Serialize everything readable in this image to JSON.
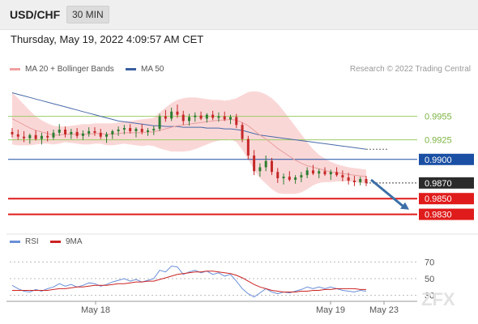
{
  "header": {
    "symbol": "USD/CHF",
    "timeframe": "30 MIN"
  },
  "datetime": "Thursday, May 19, 2022 4:09:57 AM CET",
  "legend": [
    {
      "label": "MA 20 + Bollinger Bands",
      "color": "#f0a0a0"
    },
    {
      "label": "MA 50",
      "color": "#3b5fa0"
    }
  ],
  "credit": "Research © 2022 Trading Central",
  "rsi_legend": [
    {
      "label": "RSI",
      "color": "#6a8fd6"
    },
    {
      "label": "9MA",
      "color": "#cc2222"
    }
  ],
  "watermark": "ZFX",
  "colors": {
    "up": "#2e7d32",
    "down": "#c62828",
    "band": "#f9d0d0",
    "ma20": "#e8a0a0",
    "ma50": "#4a6aa8",
    "resistance": "#9ccc65",
    "pivot": "#1a4fa3",
    "support": "#e01b1b",
    "price_tag": "#2b2b2b",
    "arrow": "#3b6fa6"
  },
  "chart_data": [
    {
      "type": "candlestick",
      "title": "USD/CHF",
      "y_range": [
        0.9812,
        1.0
      ],
      "x_labels": [
        "May 18",
        "May 19",
        "May 23"
      ],
      "ohlc": [
        [
          0.9935,
          0.994,
          0.9928,
          0.9932
        ],
        [
          0.9932,
          0.9938,
          0.9925,
          0.9929
        ],
        [
          0.9929,
          0.9936,
          0.9922,
          0.9927
        ],
        [
          0.9927,
          0.9933,
          0.992,
          0.9931
        ],
        [
          0.9931,
          0.9937,
          0.9924,
          0.9926
        ],
        [
          0.9926,
          0.9934,
          0.9919,
          0.993
        ],
        [
          0.993,
          0.9936,
          0.9923,
          0.9928
        ],
        [
          0.9928,
          0.9938,
          0.9925,
          0.9934
        ],
        [
          0.9934,
          0.9945,
          0.993,
          0.9938
        ],
        [
          0.9938,
          0.9942,
          0.9928,
          0.9932
        ],
        [
          0.9932,
          0.9939,
          0.9926,
          0.9935
        ],
        [
          0.9935,
          0.994,
          0.9927,
          0.993
        ],
        [
          0.993,
          0.9937,
          0.9925,
          0.9933
        ],
        [
          0.9933,
          0.9941,
          0.9929,
          0.9936
        ],
        [
          0.9936,
          0.9941,
          0.993,
          0.9934
        ],
        [
          0.9934,
          0.9939,
          0.9926,
          0.9929
        ],
        [
          0.9929,
          0.9935,
          0.9921,
          0.9932
        ],
        [
          0.9932,
          0.9938,
          0.9926,
          0.9936
        ],
        [
          0.9936,
          0.9942,
          0.993,
          0.9938
        ],
        [
          0.9938,
          0.9944,
          0.9932,
          0.994
        ],
        [
          0.994,
          0.9945,
          0.9933,
          0.9936
        ],
        [
          0.9936,
          0.9941,
          0.9928,
          0.9939
        ],
        [
          0.9939,
          0.9945,
          0.9932,
          0.9935
        ],
        [
          0.9935,
          0.994,
          0.993,
          0.9937
        ],
        [
          0.9937,
          0.9943,
          0.9931,
          0.9939
        ],
        [
          0.9939,
          0.9958,
          0.9936,
          0.9955
        ],
        [
          0.9955,
          0.9963,
          0.9948,
          0.9952
        ],
        [
          0.9952,
          0.9966,
          0.9949,
          0.9961
        ],
        [
          0.9961,
          0.997,
          0.9953,
          0.9957
        ],
        [
          0.9957,
          0.9962,
          0.9944,
          0.9949
        ],
        [
          0.9949,
          0.9958,
          0.9943,
          0.9954
        ],
        [
          0.9954,
          0.996,
          0.9948,
          0.9956
        ],
        [
          0.9956,
          0.9961,
          0.995,
          0.9952
        ],
        [
          0.9952,
          0.9959,
          0.9947,
          0.9957
        ],
        [
          0.9957,
          0.9962,
          0.995,
          0.9953
        ],
        [
          0.9953,
          0.996,
          0.9948,
          0.9955
        ],
        [
          0.9955,
          0.9961,
          0.9949,
          0.9951
        ],
        [
          0.9951,
          0.9957,
          0.9945,
          0.9954
        ],
        [
          0.9954,
          0.9958,
          0.994,
          0.9944
        ],
        [
          0.9944,
          0.9947,
          0.9922,
          0.9926
        ],
        [
          0.9926,
          0.993,
          0.99,
          0.9905
        ],
        [
          0.9905,
          0.9912,
          0.988,
          0.9885
        ],
        [
          0.9885,
          0.9895,
          0.9878,
          0.989
        ],
        [
          0.989,
          0.9905,
          0.9885,
          0.9898
        ],
        [
          0.9898,
          0.9902,
          0.988,
          0.9884
        ],
        [
          0.9884,
          0.9889,
          0.987,
          0.9876
        ],
        [
          0.9876,
          0.9882,
          0.9868,
          0.9878
        ],
        [
          0.9878,
          0.9885,
          0.9872,
          0.9874
        ],
        [
          0.9874,
          0.988,
          0.9869,
          0.9877
        ],
        [
          0.9877,
          0.9884,
          0.9871,
          0.988
        ],
        [
          0.988,
          0.989,
          0.9876,
          0.9886
        ],
        [
          0.9886,
          0.9893,
          0.988,
          0.9882
        ],
        [
          0.9882,
          0.9888,
          0.9876,
          0.9885
        ],
        [
          0.9885,
          0.989,
          0.9879,
          0.9881
        ],
        [
          0.9881,
          0.9887,
          0.9874,
          0.9884
        ],
        [
          0.9884,
          0.989,
          0.9878,
          0.988
        ],
        [
          0.988,
          0.9886,
          0.9872,
          0.9877
        ],
        [
          0.9877,
          0.9883,
          0.9868,
          0.9873
        ],
        [
          0.9873,
          0.9879,
          0.9866,
          0.9871
        ],
        [
          0.9871,
          0.9878,
          0.9867,
          0.9875
        ],
        [
          0.9875,
          0.9879,
          0.9866,
          0.987
        ]
      ],
      "overlays": [
        {
          "name": "MA 20",
          "values": [
            0.9952,
            0.9948,
            0.9944,
            0.994,
            0.9937,
            0.9935,
            0.9933,
            0.9931,
            0.9931,
            0.9932,
            0.9932,
            0.9932,
            0.9932,
            0.9932,
            0.9933,
            0.9933,
            0.9932,
            0.9932,
            0.9933,
            0.9934,
            0.9934,
            0.9934,
            0.9934,
            0.9935,
            0.9935,
            0.9937,
            0.9939,
            0.9941,
            0.9943,
            0.9944,
            0.9945,
            0.9946,
            0.9947,
            0.9948,
            0.9949,
            0.995,
            0.995,
            0.9951,
            0.995,
            0.9947,
            0.9943,
            0.9937,
            0.9931,
            0.9926,
            0.992,
            0.9914,
            0.9909,
            0.9904,
            0.9899,
            0.9895,
            0.9892,
            0.989,
            0.9888,
            0.9886,
            0.9884,
            0.9883,
            0.9882,
            0.9881,
            0.988,
            0.9879,
            0.9878
          ]
        },
        {
          "name": "MA 50",
          "values": [
            0.9985,
            0.9983,
            0.9981,
            0.9979,
            0.9977,
            0.9975,
            0.9973,
            0.9971,
            0.9969,
            0.9967,
            0.9965,
            0.9963,
            0.9961,
            0.9959,
            0.9957,
            0.9955,
            0.9953,
            0.9951,
            0.9949,
            0.9948,
            0.9947,
            0.9946,
            0.9945,
            0.9944,
            0.9943,
            0.9943,
            0.9942,
            0.9942,
            0.9942,
            0.9941,
            0.9941,
            0.9941,
            0.9941,
            0.994,
            0.994,
            0.994,
            0.9939,
            0.9939,
            0.9938,
            0.9937,
            0.9935,
            0.9933,
            0.9931,
            0.993,
            0.9929,
            0.9928,
            0.9927,
            0.9926,
            0.9925,
            0.9924,
            0.9923,
            0.9922,
            0.9921,
            0.992,
            0.9919,
            0.9918,
            0.9917,
            0.9916,
            0.9915,
            0.9914,
            0.9913
          ]
        },
        {
          "name": "Bollinger upper",
          "values": [
            0.9985,
            0.9978,
            0.997,
            0.9962,
            0.9955,
            0.995,
            0.9946,
            0.9943,
            0.9942,
            0.9942,
            0.9943,
            0.9944,
            0.9945,
            0.9945,
            0.9946,
            0.9946,
            0.9946,
            0.9946,
            0.9947,
            0.9948,
            0.9949,
            0.995,
            0.9951,
            0.9952,
            0.9953,
            0.996,
            0.9966,
            0.9972,
            0.9976,
            0.9978,
            0.9979,
            0.9979,
            0.9978,
            0.9977,
            0.9976,
            0.9976,
            0.9975,
            0.9976,
            0.9978,
            0.9982,
            0.9986,
            0.9987,
            0.9986,
            0.9983,
            0.9978,
            0.9971,
            0.9962,
            0.9952,
            0.9942,
            0.9932,
            0.9922,
            0.9913,
            0.9906,
            0.9901,
            0.9897,
            0.9894,
            0.9892,
            0.989,
            0.9889,
            0.9888,
            0.9887
          ]
        },
        {
          "name": "Bollinger lower",
          "values": [
            0.9919,
            0.9918,
            0.9918,
            0.9918,
            0.9919,
            0.992,
            0.992,
            0.9919,
            0.992,
            0.9922,
            0.9921,
            0.992,
            0.9919,
            0.9919,
            0.992,
            0.992,
            0.9918,
            0.9918,
            0.9919,
            0.992,
            0.9919,
            0.9918,
            0.9917,
            0.9918,
            0.9917,
            0.9914,
            0.9912,
            0.991,
            0.991,
            0.991,
            0.9911,
            0.9913,
            0.9916,
            0.9919,
            0.9922,
            0.9924,
            0.9925,
            0.9926,
            0.9922,
            0.9912,
            0.99,
            0.9887,
            0.9876,
            0.9869,
            0.9862,
            0.9857,
            0.9856,
            0.9856,
            0.9856,
            0.9858,
            0.9862,
            0.9867,
            0.987,
            0.9871,
            0.9871,
            0.9872,
            0.9872,
            0.9872,
            0.9871,
            0.987,
            0.9869
          ]
        }
      ],
      "levels": [
        {
          "label": "0.9955",
          "value": 0.9955,
          "type": "resistance"
        },
        {
          "label": "0.9925",
          "value": 0.9925,
          "type": "resistance"
        },
        {
          "label": "0.9900",
          "value": 0.99,
          "type": "pivot"
        },
        {
          "label": "0.9870",
          "value": 0.987,
          "type": "last"
        },
        {
          "label": "0.9850",
          "value": 0.985,
          "type": "support"
        },
        {
          "label": "0.9830",
          "value": 0.983,
          "type": "support"
        }
      ],
      "projection": {
        "from": 0.9874,
        "to": 0.9836
      }
    },
    {
      "type": "line",
      "title": "RSI",
      "y_range": [
        20,
        80
      ],
      "y_ticks": [
        "70",
        "50",
        "30"
      ],
      "x_labels": [
        "May 18",
        "May 19",
        "May 23"
      ],
      "series": [
        {
          "name": "RSI",
          "values": [
            42,
            38,
            35,
            34,
            37,
            35,
            38,
            40,
            44,
            41,
            43,
            40,
            42,
            45,
            44,
            41,
            43,
            46,
            48,
            50,
            47,
            49,
            46,
            48,
            50,
            60,
            58,
            65,
            64,
            55,
            58,
            60,
            57,
            59,
            55,
            57,
            53,
            55,
            47,
            38,
            32,
            28,
            33,
            38,
            34,
            32,
            34,
            33,
            35,
            37,
            40,
            38,
            40,
            38,
            40,
            38,
            36,
            35,
            34,
            36,
            35
          ]
        },
        {
          "name": "9MA",
          "values": [
            36,
            36,
            36,
            36,
            36,
            36,
            36,
            37,
            38,
            38,
            39,
            40,
            40,
            41,
            42,
            42,
            42,
            43,
            44,
            44,
            45,
            46,
            46,
            47,
            47,
            49,
            51,
            53,
            55,
            56,
            57,
            58,
            58,
            59,
            59,
            58,
            57,
            56,
            54,
            51,
            47,
            43,
            40,
            38,
            36,
            35,
            34,
            34,
            34,
            35,
            35,
            36,
            36,
            37,
            37,
            38,
            38,
            38,
            38,
            37,
            37
          ]
        }
      ]
    }
  ]
}
